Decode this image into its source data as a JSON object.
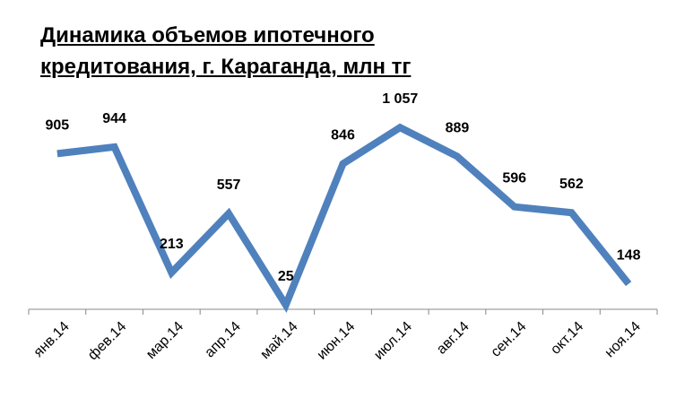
{
  "chart_data": {
    "type": "line",
    "title": "Динамика объемов ипотечного кредитования, г. Караганда, млн тг",
    "categories": [
      "янв.14",
      "фев.14",
      "мар.14",
      "апр.14",
      "май.14",
      "июн.14",
      "июл.14",
      "авг.14",
      "сен.14",
      "окт.14",
      "ноя.14"
    ],
    "series": [
      {
        "color": "#4f81bd",
        "values": [
          905,
          944,
          213,
          557,
          25,
          846,
          1057,
          889,
          596,
          562,
          148
        ],
        "value_labels": [
          "905",
          "944",
          "213",
          "557",
          "25",
          "846",
          "1 057",
          "889",
          "596",
          "562",
          "148"
        ]
      }
    ],
    "ylim": [
      0,
      1100
    ]
  }
}
